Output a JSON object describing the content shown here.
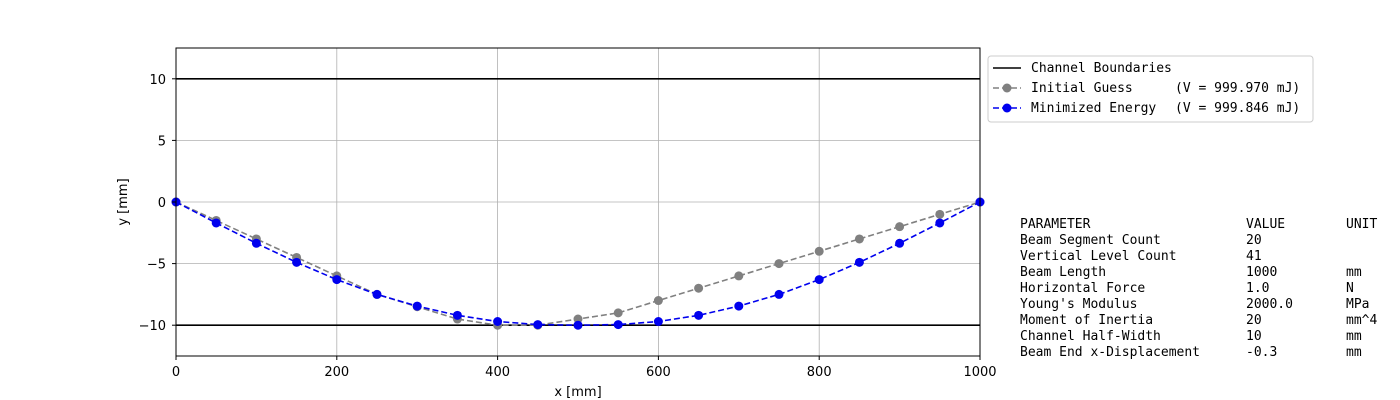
{
  "chart_data": {
    "type": "line",
    "xlabel": "x [mm]",
    "ylabel": "y [mm]",
    "xlim": [
      0,
      1000
    ],
    "ylim": [
      -12.5,
      12.5
    ],
    "grid": true,
    "legend_position": "upper-right-outside",
    "x_ticks": [
      0,
      200,
      400,
      600,
      800,
      1000
    ],
    "x_tick_labels": [
      "0",
      "200",
      "400",
      "600",
      "800",
      "1000"
    ],
    "y_ticks": [
      10,
      5,
      0,
      -5,
      -10
    ],
    "y_tick_labels": [
      "10",
      "5",
      "0",
      "−5",
      "−10"
    ],
    "boundaries": {
      "name": "Channel Boundaries",
      "color": "#000000",
      "y_values": [
        10,
        -10
      ]
    },
    "series": [
      {
        "name": "Initial Guess",
        "energy_text": "(V = 999.970 mJ)",
        "color": "#808080",
        "x": [
          0,
          50,
          100,
          150,
          200,
          250,
          300,
          350,
          400,
          450,
          500,
          550,
          600,
          650,
          700,
          750,
          800,
          850,
          900,
          950,
          1000
        ],
        "y": [
          0,
          -1.5,
          -3.0,
          -4.5,
          -6.0,
          -7.5,
          -8.5,
          -9.5,
          -10.0,
          -10.0,
          -9.5,
          -9.0,
          -8.0,
          -7.0,
          -6.0,
          -5.0,
          -4.0,
          -3.0,
          -2.0,
          -1.0,
          0
        ]
      },
      {
        "name": "Minimized Energy",
        "energy_text": "(V = 999.846 mJ)",
        "color": "#0000ee",
        "x": [
          0,
          50,
          100,
          150,
          200,
          250,
          300,
          350,
          400,
          450,
          500,
          550,
          600,
          650,
          700,
          750,
          800,
          850,
          900,
          950,
          1000
        ],
        "y": [
          0,
          -1.7,
          -3.35,
          -4.9,
          -6.3,
          -7.5,
          -8.45,
          -9.2,
          -9.7,
          -9.95,
          -10.0,
          -9.95,
          -9.7,
          -9.2,
          -8.45,
          -7.5,
          -6.3,
          -4.9,
          -3.35,
          -1.7,
          0
        ]
      }
    ]
  },
  "parameters": {
    "headers": [
      "PARAMETER",
      "VALUE",
      "UNIT"
    ],
    "rows": [
      [
        "Beam Segment Count",
        "20",
        ""
      ],
      [
        "Vertical Level Count",
        "41",
        ""
      ],
      [
        "Beam Length",
        "1000",
        "mm"
      ],
      [
        "Horizontal Force",
        "1.0",
        "N"
      ],
      [
        "Young's Modulus",
        "2000.0",
        "MPa"
      ],
      [
        "Moment of Inertia",
        "20",
        "mm^4"
      ],
      [
        "Channel Half-Width",
        "10",
        "mm"
      ],
      [
        "Beam End x-Displacement",
        "-0.3",
        "mm"
      ]
    ]
  }
}
